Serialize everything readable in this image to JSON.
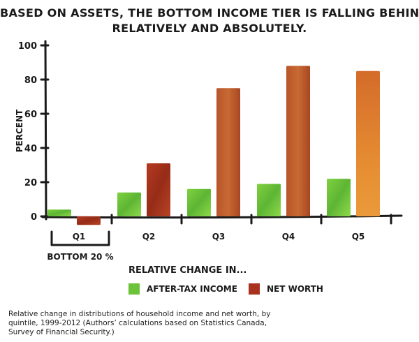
{
  "title_lines": [
    "BASED ON ASSETS, THE BOTTOM INCOME TIER IS FALLING BEHIND,",
    "RELATIVELY AND ABSOLUTELY."
  ],
  "legend": {
    "title": "RELATIVE CHANGE IN...",
    "items": [
      "AFTER-TAX INCOME",
      "NET WORTH"
    ]
  },
  "caption": "Relative change in distributions of household income and net worth, by quintile, 1999-2012 (Authors’ calculations based on Statistics Canada, Survey of Financial Security.)",
  "chart_data": {
    "type": "bar",
    "title": "BASED ON ASSETS, THE BOTTOM INCOME TIER IS FALLING BEHIND, RELATIVELY AND ABSOLUTELY.",
    "ylabel": "PERCENT",
    "xlabel": "",
    "categories": [
      "Q1",
      "Q2",
      "Q3",
      "Q4",
      "Q5"
    ],
    "bracket_label": "BOTTOM 20 %",
    "ylim": [
      -5,
      100
    ],
    "yticks": [
      0,
      20,
      40,
      60,
      80,
      100
    ],
    "grid": false,
    "legend_position": "bottom",
    "series": [
      {
        "name": "AFTER-TAX INCOME",
        "values": [
          4,
          14,
          16,
          19,
          22
        ],
        "color": "#6cc33a"
      },
      {
        "name": "NET WORTH",
        "values": [
          -5,
          31,
          75,
          88,
          85
        ],
        "color": "#a8321e"
      }
    ]
  }
}
